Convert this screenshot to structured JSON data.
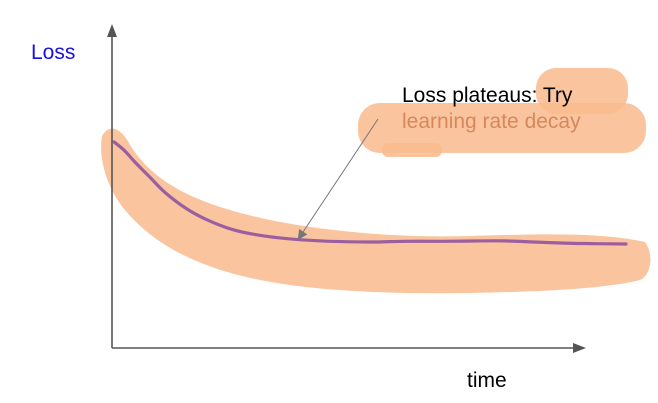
{
  "chart_data": {
    "type": "line",
    "title": "",
    "xlabel": "time",
    "ylabel": "Loss",
    "xlim": [
      0,
      100
    ],
    "ylim": [
      0,
      100
    ],
    "grid": false,
    "series": [
      {
        "x": [
          0,
          2,
          4,
          7,
          10,
          14,
          18,
          23,
          28,
          35,
          42,
          50,
          57,
          64,
          70,
          76,
          82,
          88,
          94,
          100
        ],
        "y": [
          93,
          87,
          79,
          68,
          57,
          46,
          38,
          31,
          27,
          24,
          22.5,
          22,
          22.5,
          22.5,
          22.7,
          22.8,
          22,
          21.2,
          20.8,
          20.6
        ]
      }
    ],
    "annotations": [
      {
        "lines": [
          "Loss plateaus: Try",
          "learning rate decay"
        ],
        "points_to_x": 36,
        "points_to_y": 24
      }
    ],
    "colors": {
      "axis": "#555555",
      "curve": "#9b5fa0",
      "highlight": "#f9bb8d",
      "ylabel": "#1a10e0",
      "xlabel": "#000000",
      "note_dark": "#000000",
      "note_light": "#d6875c",
      "pointer": "#777777"
    }
  }
}
